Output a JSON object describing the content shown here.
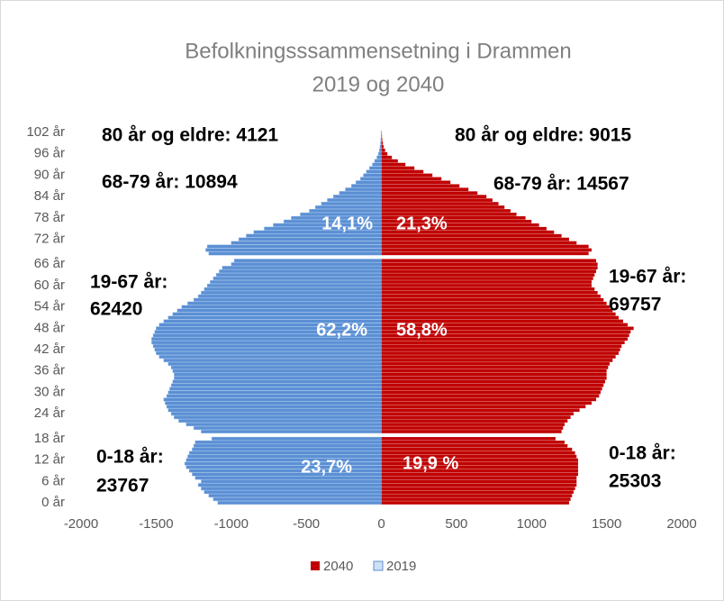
{
  "chart_data": {
    "type": "pyramid",
    "title": "Befolkningsssammensetning  i Drammen",
    "subtitle": "2019 og 2040",
    "categories": [
      "0 år",
      null,
      null,
      null,
      null,
      null,
      "6 år",
      null,
      null,
      null,
      null,
      null,
      "12 år",
      null,
      null,
      null,
      null,
      null,
      "18 år",
      null,
      null,
      null,
      null,
      null,
      null,
      "24 år",
      null,
      null,
      null,
      null,
      null,
      "30 år",
      null,
      null,
      null,
      null,
      null,
      "36 år",
      null,
      null,
      null,
      null,
      null,
      "42 år",
      null,
      null,
      null,
      null,
      null,
      "48 år",
      null,
      null,
      null,
      null,
      null,
      "54 år",
      null,
      null,
      null,
      null,
      null,
      "60 år",
      null,
      null,
      null,
      null,
      null,
      "66 år",
      null,
      null,
      null,
      null,
      null,
      null,
      "72 år",
      null,
      null,
      null,
      null,
      null,
      "78 år",
      null,
      null,
      null,
      null,
      null,
      "84 år",
      null,
      null,
      null,
      null,
      null,
      "90 år",
      null,
      null,
      null,
      null,
      null,
      "96 år",
      null,
      null,
      null,
      null,
      null,
      "102 år"
    ],
    "series": [
      {
        "name": "2040",
        "color": "#c00000",
        "values": [
          1250,
          1260,
          1270,
          1280,
          1290,
          1300,
          1300,
          1300,
          1310,
          1310,
          1310,
          1310,
          1310,
          1300,
          1290,
          1270,
          1240,
          1220,
          1160,
          null,
          1200,
          1210,
          1220,
          1240,
          1260,
          1280,
          1320,
          1360,
          1400,
          1430,
          1450,
          1460,
          1470,
          1480,
          1490,
          1500,
          1500,
          1500,
          1510,
          1520,
          1540,
          1560,
          1580,
          1590,
          1600,
          1620,
          1640,
          1650,
          1660,
          1680,
          1640,
          1610,
          1580,
          1560,
          1540,
          1520,
          1500,
          1480,
          1460,
          1440,
          1420,
          1400,
          1400,
          1410,
          1420,
          1430,
          1440,
          1440,
          1430,
          null,
          1380,
          1400,
          1380,
          1300,
          1250,
          1200,
          1150,
          1100,
          1050,
          1000,
          960,
          900,
          860,
          820,
          780,
          740,
          700,
          640,
          580,
          520,
          460,
          400,
          340,
          280,
          220,
          160,
          110,
          70,
          40,
          25,
          15,
          10,
          6,
          4,
          2
        ]
      },
      {
        "name": "2019",
        "color": "#5b8fd4",
        "values": [
          -1090,
          -1120,
          -1150,
          -1180,
          -1200,
          -1220,
          -1200,
          -1240,
          -1260,
          -1280,
          -1300,
          -1310,
          -1300,
          -1290,
          -1280,
          -1260,
          -1250,
          -1240,
          -1130,
          null,
          -1200,
          -1250,
          -1300,
          -1350,
          -1380,
          -1400,
          -1420,
          -1430,
          -1440,
          -1450,
          -1430,
          -1420,
          -1410,
          -1400,
          -1390,
          -1380,
          -1380,
          -1390,
          -1400,
          -1420,
          -1450,
          -1480,
          -1500,
          -1510,
          -1520,
          -1530,
          -1530,
          -1520,
          -1510,
          -1500,
          -1480,
          -1450,
          -1420,
          -1390,
          -1360,
          -1330,
          -1290,
          -1250,
          -1220,
          -1200,
          -1180,
          -1160,
          -1140,
          -1120,
          -1100,
          -1080,
          -1060,
          -1000,
          -980,
          null,
          -1150,
          -1170,
          -1160,
          -1000,
          -950,
          -900,
          -850,
          -780,
          -720,
          -650,
          -600,
          -540,
          -480,
          -440,
          -400,
          -360,
          -320,
          -280,
          -240,
          -200,
          -170,
          -140,
          -120,
          -100,
          -80,
          -60,
          -45,
          -30,
          -20,
          -14,
          -9,
          -6,
          -4,
          -2,
          -1
        ]
      }
    ],
    "xlim": [
      -2000,
      2000
    ],
    "xticks": [
      -2000,
      -1500,
      -1000,
      -500,
      0,
      500,
      1000,
      1500,
      2000
    ],
    "annotations": [
      "80 år og eldre: 4121",
      "68-79 år: 10894",
      "19-67 år:",
      "62420",
      "0-18 år:",
      "23767",
      "80 år og eldre: 9015",
      "68-79 år: 14567",
      "19-67 år:",
      "69757",
      "0-18 år:",
      "25303",
      "14,1%",
      "21,3%",
      "62,2%",
      "58,8%",
      "23,7%",
      "19,9 %"
    ],
    "legend": "bottom",
    "grid": false
  }
}
